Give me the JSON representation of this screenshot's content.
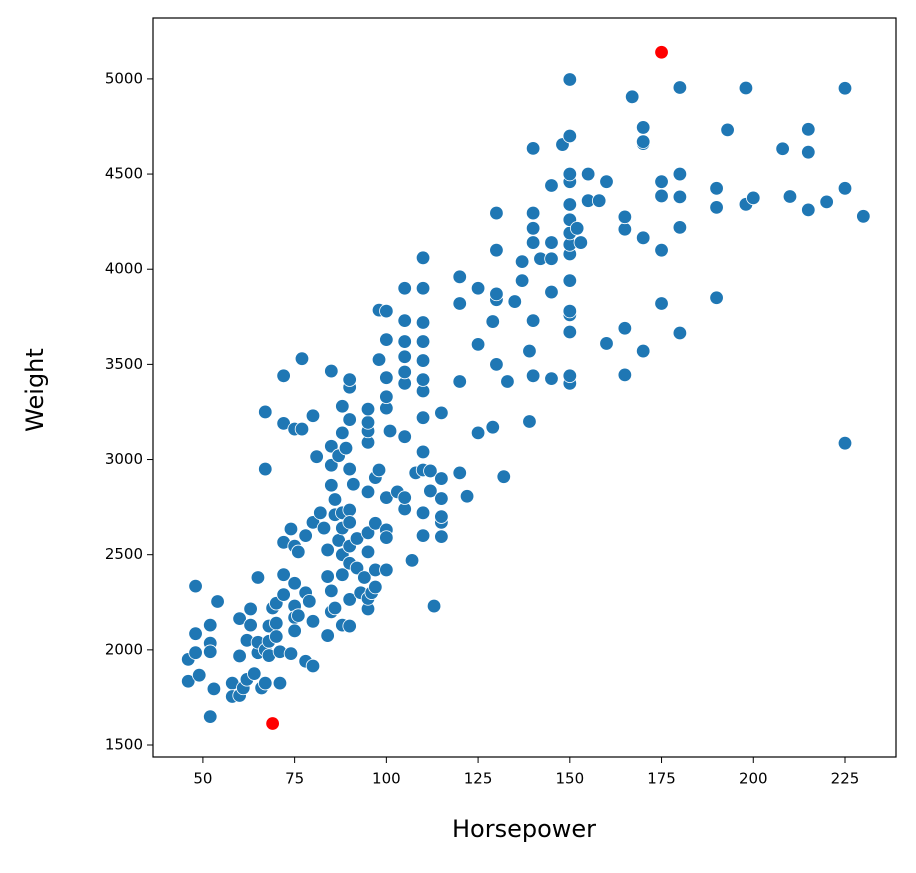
{
  "chart_data": {
    "type": "scatter",
    "xlabel": "Horsepower",
    "ylabel": "Weight",
    "xlim": [
      36.4,
      238.9
    ],
    "ylim": [
      1437,
      5320
    ],
    "xticks": [
      50,
      75,
      100,
      125,
      150,
      175,
      200,
      225
    ],
    "yticks": [
      1500,
      2000,
      2500,
      3000,
      3500,
      4000,
      4500,
      5000
    ],
    "grid": false,
    "series": [
      {
        "color": "#1f77b4",
        "x": [
          46,
          46,
          48,
          48,
          48,
          49,
          52,
          52,
          52,
          52,
          53,
          54,
          58,
          58,
          60,
          60,
          60,
          61,
          62,
          62,
          63,
          63,
          64,
          65,
          65,
          65,
          66,
          67,
          67,
          67,
          67,
          68,
          68,
          68,
          69,
          70,
          70,
          70,
          71,
          71,
          72,
          72,
          72,
          72,
          72,
          74,
          74,
          75,
          75,
          75,
          75,
          75,
          75,
          76,
          76,
          77,
          77,
          78,
          78,
          78,
          79,
          80,
          80,
          80,
          80,
          81,
          82,
          83,
          84,
          84,
          84,
          85,
          85,
          85,
          85,
          85,
          85,
          86,
          86,
          86,
          87,
          87,
          88,
          88,
          88,
          88,
          88,
          88,
          88,
          89,
          90,
          90,
          90,
          90,
          90,
          90,
          90,
          90,
          90,
          90,
          91,
          92,
          92,
          93,
          94,
          95,
          95,
          95,
          95,
          95,
          95,
          95,
          95,
          95,
          96,
          97,
          97,
          97,
          97,
          98,
          98,
          98,
          100,
          100,
          100,
          100,
          100,
          100,
          100,
          100,
          100,
          101,
          103,
          105,
          105,
          105,
          105,
          105,
          105,
          105,
          105,
          105,
          107,
          108,
          110,
          110,
          110,
          110,
          110,
          110,
          110,
          110,
          110,
          110,
          110,
          110,
          112,
          112,
          113,
          115,
          115,
          115,
          115,
          115,
          115,
          120,
          120,
          120,
          120,
          122,
          125,
          125,
          125,
          129,
          129,
          130,
          130,
          130,
          130,
          130,
          132,
          133,
          135,
          137,
          137,
          139,
          139,
          140,
          140,
          140,
          140,
          140,
          140,
          142,
          145,
          145,
          145,
          145,
          145,
          148,
          150,
          150,
          150,
          150,
          150,
          150,
          150,
          150,
          150,
          150,
          150,
          150,
          150,
          150,
          150,
          152,
          153,
          155,
          155,
          158,
          160,
          160,
          165,
          165,
          165,
          165,
          167,
          170,
          170,
          170,
          170,
          170,
          175,
          175,
          175,
          175,
          180,
          180,
          180,
          180,
          180,
          190,
          190,
          190,
          193,
          198,
          198,
          200,
          208,
          210,
          215,
          215,
          215,
          220,
          225,
          225,
          225,
          230
        ],
        "values": [
          1835,
          1950,
          2335,
          2085,
          1985,
          1867,
          1649,
          2035,
          1990,
          2130,
          1795,
          2254,
          1825,
          1755,
          1760,
          1968,
          2164,
          1800,
          2050,
          1845,
          2130,
          2215,
          1875,
          1985,
          2040,
          2380,
          1800,
          1825,
          2950,
          3250,
          2000,
          2045,
          1970,
          2125,
          2220,
          2245,
          2140,
          2070,
          1825,
          1990,
          2565,
          2395,
          2290,
          3440,
          3190,
          1980,
          2635,
          2230,
          2170,
          2100,
          2350,
          2545,
          3160,
          2515,
          2180,
          3530,
          3160,
          2300,
          1940,
          2600,
          2255,
          1915,
          2150,
          2670,
          3230,
          3015,
          2720,
          2640,
          2385,
          2075,
          2525,
          2865,
          2200,
          2310,
          3070,
          2970,
          3465,
          2790,
          2710,
          2220,
          2575,
          3020,
          2130,
          2640,
          2500,
          2395,
          3140,
          3280,
          2720,
          3060,
          2265,
          2125,
          2545,
          3380,
          3210,
          2950,
          2735,
          2670,
          2455,
          3420,
          2870,
          2585,
          2430,
          2300,
          2380,
          2215,
          2270,
          2515,
          2615,
          2830,
          3090,
          3150,
          3195,
          3265,
          2300,
          2330,
          2420,
          2905,
          2665,
          2945,
          3525,
          3785,
          2630,
          2590,
          2800,
          3270,
          3330,
          3430,
          3630,
          3780,
          2420,
          3150,
          2830,
          2740,
          2800,
          3120,
          3400,
          3460,
          3540,
          3620,
          3730,
          3900,
          2470,
          2930,
          2600,
          2720,
          2945,
          3040,
          3220,
          3360,
          3420,
          3520,
          3620,
          3720,
          3900,
          4060,
          2835,
          2940,
          2230,
          2595,
          2670,
          2700,
          2795,
          2900,
          3245,
          2930,
          3410,
          3820,
          3960,
          2807,
          3140,
          3605,
          3900,
          3170,
          3725,
          3500,
          3840,
          3870,
          4100,
          4295,
          2910,
          3410,
          3830,
          3940,
          4040,
          3570,
          3200,
          3440,
          3730,
          4140,
          4215,
          4295,
          4635,
          4055,
          3425,
          3880,
          4055,
          4140,
          4440,
          4655,
          3400,
          3440,
          3670,
          3760,
          3780,
          3940,
          4080,
          4130,
          4190,
          4260,
          4340,
          4460,
          4500,
          4700,
          4997,
          4215,
          4140,
          4360,
          4500,
          4360,
          3610,
          4460,
          3445,
          3690,
          4210,
          4275,
          4906,
          3570,
          4165,
          4660,
          4670,
          4745,
          3820,
          4100,
          4385,
          4460,
          3665,
          4220,
          4380,
          4500,
          4955,
          3850,
          4325,
          4425,
          4732,
          4341,
          4952,
          4375,
          4633,
          4382,
          4312,
          4615,
          4735,
          4354,
          3086,
          4425,
          4951,
          4278
        ]
      },
      {
        "color": "#ff0000",
        "x": [
          69,
          175
        ],
        "values": [
          1613,
          5140
        ]
      }
    ]
  }
}
